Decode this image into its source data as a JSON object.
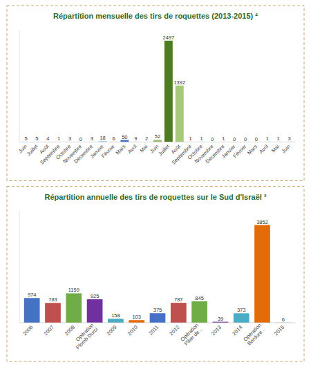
{
  "chart_data": [
    {
      "type": "bar",
      "title": "Répartition mensuelle des tirs de roquettes (2013-2015) ²",
      "categories": [
        "Juin",
        "Juillet",
        "Août",
        "Septembre",
        "Octobre",
        "Novembre",
        "Décembre",
        "Janvier",
        "Février",
        "Mars",
        "Avril",
        "Mai",
        "Juin",
        "Juillet",
        "Août",
        "Septembre",
        "Octobre",
        "Novembre",
        "Décembre",
        "Janvier",
        "Février",
        "Mars",
        "Avril",
        "Mai",
        "Juin"
      ],
      "values": [
        5,
        5,
        4,
        1,
        3,
        0,
        3,
        18,
        6,
        50,
        9,
        2,
        52,
        2497,
        1392,
        1,
        1,
        0,
        1,
        0,
        0,
        0,
        1,
        1,
        3
      ],
      "colors": [
        "#9dbb6a",
        "#9dbb6a",
        "#9dbb6a",
        "#9dbb6a",
        "#9dbb6a",
        "#9dbb6a",
        "#9dbb6a",
        "#6fa8d8",
        "#6fa8d8",
        "#4472c4",
        "#4472c4",
        "#4472c4",
        "#9dbb6a",
        "#4e7c20",
        "#a8c87a",
        "#9dbb6a",
        "#9dbb6a",
        "#9dbb6a",
        "#9dbb6a",
        "#9dbb6a",
        "#9dbb6a",
        "#9dbb6a",
        "#9dbb6a",
        "#9dbb6a",
        "#9dbb6a"
      ],
      "ylim": [
        0,
        2750
      ],
      "data_labels": true,
      "tick_labels": "x",
      "grid": false
    },
    {
      "type": "bar",
      "title": "Répartition annuelle des tirs de roquettes sur le Sud d'Israël ³",
      "categories": [
        "2006",
        "2007",
        "2008",
        "Opération\nPlomb Durci",
        "2009",
        "2010",
        "2011",
        "2012",
        "Opération\nPilier de...",
        "2013",
        "2014",
        "Opération\nBordure...",
        "2015"
      ],
      "values": [
        974,
        783,
        1159,
        925,
        158,
        103,
        375,
        787,
        845,
        39,
        373,
        3852,
        6
      ],
      "colors": [
        "#4472c4",
        "#c0504d",
        "#70ad47",
        "#7030a0",
        "#4bacc6",
        "#e36c09",
        "#4472c4",
        "#c0504d",
        "#70ad47",
        "#7030a0",
        "#4bacc6",
        "#e36c09",
        "#808080"
      ],
      "ylim": [
        0,
        4400
      ],
      "data_labels": true,
      "tick_labels": "x",
      "grid": false
    }
  ]
}
